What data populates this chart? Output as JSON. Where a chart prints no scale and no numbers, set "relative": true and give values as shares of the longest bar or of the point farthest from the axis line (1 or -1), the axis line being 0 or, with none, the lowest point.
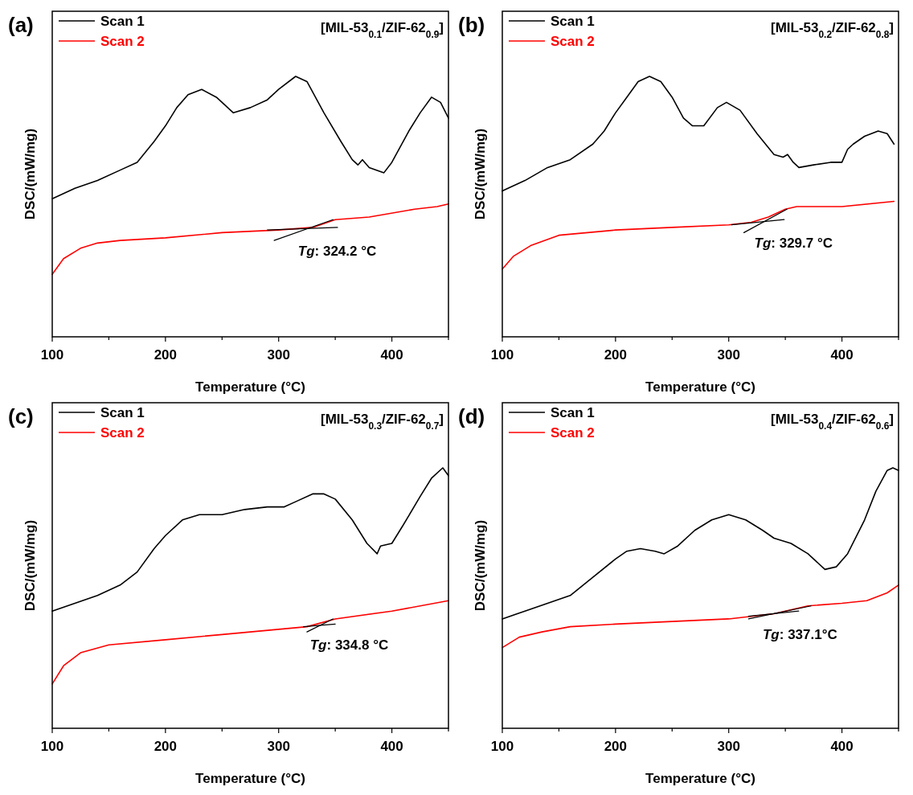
{
  "chart_data": [
    {
      "type": "line",
      "title": "[MIL-53$_{0.1}$/ZIF-62$_{0.9}$]",
      "xlabel": "Temperature (°C)",
      "ylabel": "DSC/(mW/mg)",
      "relative": true,
      "xlim": [
        100,
        450
      ],
      "xticks": [
        100,
        {
          "value": 150,
          "label": null
        },
        200,
        {
          "value": 250,
          "label": null
        },
        300,
        {
          "value": 350,
          "label": null
        },
        400,
        {
          "value": 450,
          "label": null
        }
      ],
      "tick_labels": "x",
      "legend": "top left",
      "grid": false,
      "annotations": [
        "(a)",
        {
          "text": "Tg: 324.2 °C",
          "x": 324.2,
          "y": 0.41
        }
      ],
      "series": [
        {
          "name": "Scan 1",
          "color": "#000000",
          "x": [
            100,
            120,
            140,
            160,
            175,
            190,
            200,
            210,
            220,
            232,
            245,
            260,
            275,
            290,
            300,
            315,
            325,
            340,
            355,
            365,
            370,
            374,
            380,
            393,
            400,
            415,
            425,
            435,
            443,
            450
          ],
          "values": [
            0.53,
            0.57,
            0.6,
            0.64,
            0.67,
            0.75,
            0.81,
            0.88,
            0.93,
            0.95,
            0.92,
            0.86,
            0.88,
            0.91,
            0.95,
            1,
            0.98,
            0.86,
            0.75,
            0.68,
            0.66,
            0.68,
            0.65,
            0.63,
            0.67,
            0.79,
            0.86,
            0.92,
            0.9,
            0.84
          ]
        },
        {
          "name": "Scan 2",
          "color": "#ff0000",
          "x": [
            100,
            110,
            125,
            140,
            160,
            200,
            250,
            300,
            330,
            350,
            380,
            420,
            440,
            450
          ],
          "values": [
            0.24,
            0.3,
            0.34,
            0.36,
            0.37,
            0.38,
            0.4,
            0.41,
            0.42,
            0.45,
            0.46,
            0.49,
            0.5,
            0.51
          ]
        },
        {
          "type": "line",
          "color": "#000000",
          "x": [
            290,
            352
          ],
          "values": [
            0.41,
            0.42
          ]
        },
        {
          "type": "line",
          "color": "#000000",
          "x": [
            296,
            348
          ],
          "values": [
            0.37,
            0.45
          ]
        }
      ]
    },
    {
      "type": "line",
      "title": "[MIL-53$_{0.2}$/ZIF-62$_{0.8}$]",
      "xlabel": "Temperature (°C)",
      "ylabel": "DSC/(mW/mg)",
      "relative": true,
      "xlim": [
        100,
        450
      ],
      "xticks": [
        100,
        {
          "value": 150,
          "label": null
        },
        200,
        {
          "value": 250,
          "label": null
        },
        300,
        {
          "value": 350,
          "label": null
        },
        400,
        {
          "value": 450,
          "label": null
        }
      ],
      "tick_labels": "x",
      "legend": "top left",
      "grid": false,
      "annotations": [
        "(b)",
        {
          "text": "Tg: 329.7 °C",
          "x": 329.7,
          "y": 0.44
        }
      ],
      "series": [
        {
          "name": "Scan 1",
          "color": "#000000",
          "x": [
            100,
            120,
            140,
            160,
            180,
            190,
            200,
            210,
            220,
            230,
            240,
            250,
            260,
            268,
            278,
            290,
            298,
            310,
            325,
            340,
            348,
            352,
            357,
            362,
            375,
            390,
            400,
            405,
            410,
            420,
            432,
            440,
            446
          ],
          "values": [
            0.56,
            0.6,
            0.65,
            0.68,
            0.74,
            0.79,
            0.86,
            0.92,
            0.98,
            1,
            0.98,
            0.92,
            0.84,
            0.81,
            0.81,
            0.88,
            0.9,
            0.87,
            0.78,
            0.7,
            0.69,
            0.7,
            0.67,
            0.65,
            0.66,
            0.67,
            0.67,
            0.72,
            0.74,
            0.77,
            0.79,
            0.78,
            0.74
          ]
        },
        {
          "name": "Scan 2",
          "color": "#ff0000",
          "x": [
            100,
            110,
            125,
            150,
            200,
            250,
            300,
            320,
            335,
            350,
            360,
            400,
            446
          ],
          "values": [
            0.26,
            0.31,
            0.35,
            0.39,
            0.41,
            0.42,
            0.43,
            0.44,
            0.46,
            0.49,
            0.5,
            0.5,
            0.52
          ]
        },
        {
          "type": "line",
          "color": "#000000",
          "x": [
            302.5,
            349
          ],
          "values": [
            0.43,
            0.45
          ]
        },
        {
          "type": "line",
          "color": "#000000",
          "x": [
            313.4,
            351.4
          ],
          "values": [
            0.4,
            0.49
          ]
        }
      ]
    },
    {
      "type": "line",
      "title": "[MIL-53$_{0.3}$/ZIF-62$_{0.7}$]",
      "xlabel": "Temperature (°C)",
      "ylabel": "DSC/(mW/mg)",
      "relative": true,
      "xlim": [
        100,
        450
      ],
      "xticks": [
        100,
        {
          "value": 150,
          "label": null
        },
        200,
        {
          "value": 250,
          "label": null
        },
        300,
        {
          "value": 350,
          "label": null
        },
        400,
        {
          "value": 450,
          "label": null
        }
      ],
      "tick_labels": "x",
      "legend": "top left",
      "grid": false,
      "annotations": [
        "(c)",
        {
          "text": "Tg: 334.8 °C",
          "x": 334.8,
          "y": 0.4
        }
      ],
      "series": [
        {
          "name": "Scan 1",
          "color": "#000000",
          "x": [
            100,
            120,
            140,
            160,
            175,
            190,
            200,
            215,
            230,
            250,
            270,
            290,
            305,
            315,
            330,
            340,
            350,
            365,
            378,
            387,
            390,
            400,
            410,
            425,
            435,
            445,
            450
          ],
          "values": [
            0.45,
            0.48,
            0.51,
            0.55,
            0.6,
            0.69,
            0.74,
            0.8,
            0.82,
            0.82,
            0.84,
            0.85,
            0.85,
            0.87,
            0.9,
            0.9,
            0.88,
            0.8,
            0.71,
            0.67,
            0.7,
            0.71,
            0.78,
            0.89,
            0.96,
            1,
            0.97
          ]
        },
        {
          "name": "Scan 2",
          "color": "#ff0000",
          "x": [
            100,
            110,
            125,
            150,
            200,
            250,
            300,
            325,
            350,
            400,
            450
          ],
          "values": [
            0.17,
            0.24,
            0.29,
            0.32,
            0.34,
            0.36,
            0.38,
            0.39,
            0.42,
            0.45,
            0.49
          ]
        },
        {
          "type": "line",
          "color": "#000000",
          "x": [
            322,
            350
          ],
          "values": [
            0.39,
            0.4
          ]
        },
        {
          "type": "line",
          "color": "#000000",
          "x": [
            325,
            348
          ],
          "values": [
            0.37,
            0.42
          ]
        }
      ]
    },
    {
      "type": "line",
      "title": "[MIL-53$_{0.4}$/ZIF-62$_{0.6}$]",
      "xlabel": "Temperature (°C)",
      "ylabel": "DSC/(mW/mg)",
      "relative": true,
      "xlim": [
        100,
        450
      ],
      "xticks": [
        100,
        {
          "value": 150,
          "label": null
        },
        200,
        {
          "value": 250,
          "label": null
        },
        300,
        {
          "value": 350,
          "label": null
        },
        400,
        {
          "value": 450,
          "label": null
        }
      ],
      "tick_labels": "x",
      "legend": "top left",
      "grid": false,
      "annotations": [
        "(d)",
        {
          "text": "Tg: 337.1°C",
          "x": 337.1,
          "y": 0.44
        }
      ],
      "series": [
        {
          "name": "Scan 1",
          "color": "#000000",
          "x": [
            100,
            120,
            140,
            160,
            180,
            200,
            210,
            222,
            235,
            243,
            255,
            270,
            285,
            300,
            315,
            330,
            340,
            355,
            370,
            385,
            395,
            405,
            420,
            430,
            440,
            445,
            450
          ],
          "values": [
            0.42,
            0.45,
            0.48,
            0.51,
            0.58,
            0.65,
            0.68,
            0.69,
            0.68,
            0.67,
            0.7,
            0.76,
            0.8,
            0.82,
            0.8,
            0.76,
            0.73,
            0.71,
            0.67,
            0.61,
            0.62,
            0.67,
            0.8,
            0.91,
            0.99,
            1,
            0.99
          ]
        },
        {
          "name": "Scan 2",
          "color": "#ff0000",
          "x": [
            100,
            115,
            135,
            160,
            200,
            250,
            300,
            340,
            370,
            400,
            422,
            428,
            440,
            450
          ],
          "values": [
            0.31,
            0.35,
            0.37,
            0.39,
            0.4,
            0.41,
            0.42,
            0.44,
            0.47,
            0.48,
            0.49,
            0.5,
            0.52,
            0.55
          ]
        },
        {
          "type": "line",
          "color": "#000000",
          "x": [
            317.5,
            372.7
          ],
          "values": [
            0.42,
            0.47
          ]
        },
        {
          "type": "line",
          "color": "#000000",
          "x": [
            317.5,
            361.8
          ],
          "values": [
            0.43,
            0.45
          ]
        }
      ]
    }
  ]
}
